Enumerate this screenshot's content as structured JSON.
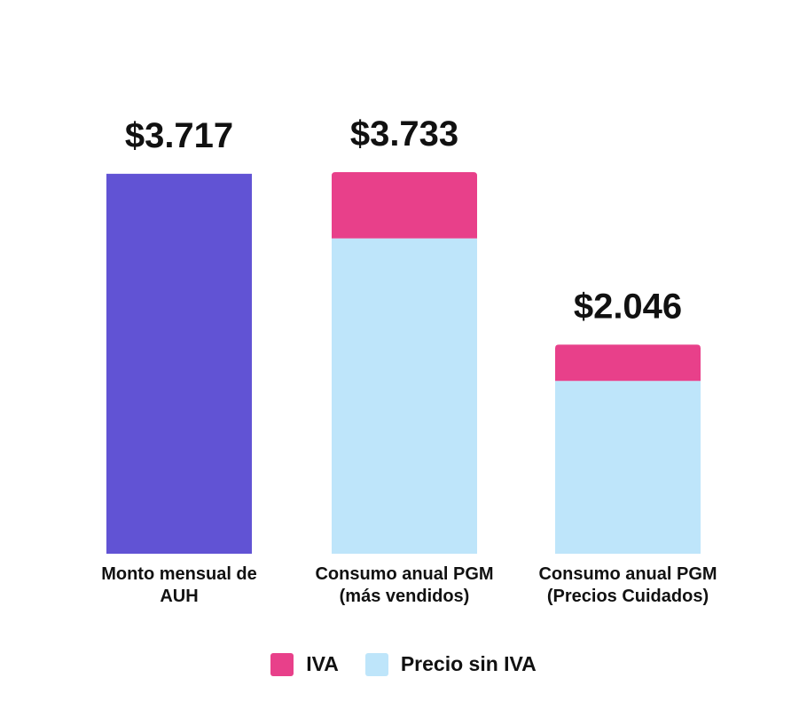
{
  "chart_data": {
    "type": "bar",
    "stacked": true,
    "categories": [
      "Monto mensual de AUH",
      "Consumo anual PGM (más vendidos)",
      "Consumo anual PGM (Precios Cuidados)"
    ],
    "category_lines": [
      [
        "Monto mensual de",
        "AUH"
      ],
      [
        "Consumo anual PGM",
        "(más vendidos)"
      ],
      [
        "Consumo anual PGM",
        "(Precios Cuidados)"
      ]
    ],
    "series": [
      {
        "values": [
          3717,
          0,
          0
        ],
        "color": "#6153D4"
      },
      {
        "name": "Precio sin IVA",
        "values": [
          0,
          3085,
          1691
        ],
        "color": "#BEE5FA"
      },
      {
        "name": "IVA",
        "values": [
          0,
          648,
          355
        ],
        "color": "#E8408A"
      }
    ],
    "data_labels": [
      "$3.717",
      "$3.733",
      "$2.046"
    ],
    "ylim": [
      0,
      3733
    ],
    "grid": false,
    "legend": {
      "placement": "bottom",
      "entries": [
        {
          "label": "IVA",
          "color": "#E8408A"
        },
        {
          "label": "Precio sin IVA",
          "color": "#BEE5FA"
        }
      ]
    },
    "title": "",
    "xlabel": "",
    "ylabel": ""
  }
}
